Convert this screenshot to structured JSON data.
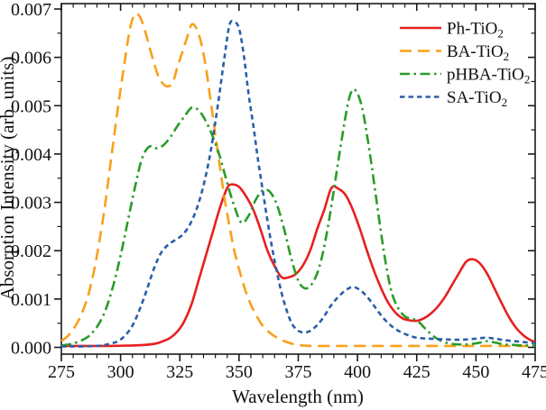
{
  "figure": {
    "background": "#ffffff"
  },
  "chart_data": {
    "type": "line",
    "title": "",
    "xlabel": "Wavelength (nm)",
    "ylabel": "Absorption Intensity (arb. units)",
    "xlim": [
      275,
      475
    ],
    "ylim": [
      0,
      0.007
    ],
    "x_major_ticks": [
      275,
      300,
      325,
      350,
      375,
      400,
      425,
      450,
      475
    ],
    "x_tick_labels": [
      "275",
      "300",
      "325",
      "350",
      "375",
      "400",
      "425",
      "450",
      "475"
    ],
    "x_minor_step": 5,
    "y_major_ticks": [
      0,
      0.001,
      0.002,
      0.003,
      0.004,
      0.005,
      0.006,
      0.007
    ],
    "y_tick_labels": [
      "0.000",
      "0.001",
      "0.002",
      "0.003",
      "0.004",
      "0.005",
      "0.006",
      "0.007"
    ],
    "y_minor_step": 0.0005,
    "grid": false,
    "axis_color": "#1a1a1a",
    "legend": {
      "position": "upper-right",
      "frame": false
    },
    "series": [
      {
        "id": "ph-tio2",
        "name": "Ph-TiO",
        "name_sub": "2",
        "color": "#e62020",
        "style": "solid",
        "x": [
          275,
          285,
          295,
          305,
          310,
          315,
          318,
          321,
          324,
          327,
          330,
          333,
          336,
          339,
          342,
          345,
          347,
          350,
          353,
          356,
          359,
          362,
          365,
          368,
          371,
          374,
          377,
          380,
          383,
          386,
          389,
          392,
          395,
          398,
          401,
          404,
          407,
          410,
          413,
          416,
          419,
          422,
          425,
          428,
          431,
          434,
          437,
          440,
          443,
          446,
          449,
          452,
          455,
          458,
          461,
          464,
          467,
          470,
          473,
          475
        ],
        "y": [
          3e-05,
          3e-05,
          3e-05,
          4e-05,
          5e-05,
          8e-05,
          0.00013,
          0.0002,
          0.00033,
          0.00055,
          0.0009,
          0.0014,
          0.0019,
          0.0024,
          0.0029,
          0.0033,
          0.00337,
          0.00332,
          0.00312,
          0.00285,
          0.00245,
          0.002,
          0.00168,
          0.00145,
          0.00145,
          0.00152,
          0.0017,
          0.002,
          0.00245,
          0.00285,
          0.0033,
          0.00328,
          0.00315,
          0.00285,
          0.00245,
          0.002,
          0.00158,
          0.00122,
          0.00092,
          0.00072,
          0.0006,
          0.00056,
          0.00055,
          0.0006,
          0.0007,
          0.00085,
          0.00105,
          0.0013,
          0.00155,
          0.00178,
          0.00182,
          0.00172,
          0.0015,
          0.0012,
          0.0009,
          0.00062,
          0.0004,
          0.00025,
          0.00015,
          0.00012
        ]
      },
      {
        "id": "ba-tio2",
        "name": "BA-TiO",
        "name_sub": "2",
        "color": "#f9a01b",
        "style": "long-dash",
        "x": [
          275,
          278,
          281,
          284,
          287,
          290,
          293,
          296,
          299,
          302,
          304,
          306,
          308,
          310,
          312,
          314,
          316,
          318,
          320,
          322,
          324,
          326,
          328,
          330,
          332,
          334,
          336,
          338,
          340,
          342,
          344,
          346,
          348,
          350,
          352,
          354,
          356,
          358,
          360,
          363,
          366,
          369,
          372,
          375,
          380,
          390,
          400,
          415,
          430,
          450,
          475
        ],
        "y": [
          0.00013,
          0.00025,
          0.00045,
          0.00075,
          0.0012,
          0.0019,
          0.0028,
          0.0039,
          0.005,
          0.006,
          0.0066,
          0.00689,
          0.00685,
          0.0066,
          0.00625,
          0.0059,
          0.0056,
          0.00545,
          0.0054,
          0.00548,
          0.0058,
          0.0061,
          0.0064,
          0.00668,
          0.0066,
          0.0063,
          0.0058,
          0.0051,
          0.0044,
          0.0037,
          0.00305,
          0.0025,
          0.002,
          0.00162,
          0.00128,
          0.001,
          0.00078,
          0.0006,
          0.00045,
          0.0003,
          0.0002,
          0.00013,
          8e-05,
          5e-05,
          3e-05,
          3e-05,
          3e-05,
          3e-05,
          3e-05,
          3e-05,
          3e-05
        ]
      },
      {
        "id": "phba-tio2",
        "name": "pHBA-TiO",
        "name_sub": "2",
        "color": "#2a9c28",
        "style": "dash-dot",
        "x": [
          275,
          280,
          285,
          288,
          291,
          294,
          297,
          300,
          303,
          306,
          309,
          312,
          315,
          318,
          321,
          324,
          327,
          330,
          333,
          336,
          339,
          342,
          345,
          348,
          351,
          354,
          357,
          360,
          363,
          366,
          369,
          372,
          375,
          378,
          381,
          384,
          387,
          390,
          393,
          396,
          398,
          400,
          402,
          404,
          406,
          408,
          410,
          412,
          414,
          416,
          418,
          420,
          422,
          424,
          426,
          428,
          430,
          433,
          436,
          440,
          444,
          448,
          452,
          455,
          458,
          462,
          466,
          470,
          475
        ],
        "y": [
          4e-05,
          8e-05,
          0.00018,
          0.0003,
          0.0005,
          0.00082,
          0.0013,
          0.0019,
          0.0026,
          0.0033,
          0.0039,
          0.00415,
          0.00412,
          0.00418,
          0.00435,
          0.00458,
          0.00478,
          0.00496,
          0.0049,
          0.00468,
          0.00435,
          0.00393,
          0.0034,
          0.00292,
          0.00258,
          0.00272,
          0.00305,
          0.00325,
          0.00322,
          0.00295,
          0.00245,
          0.00185,
          0.00138,
          0.00122,
          0.00133,
          0.00168,
          0.00235,
          0.00325,
          0.0042,
          0.00505,
          0.00533,
          0.00525,
          0.00495,
          0.0044,
          0.00375,
          0.00305,
          0.00235,
          0.00172,
          0.00122,
          0.00092,
          0.00075,
          0.00064,
          0.0006,
          0.00058,
          0.00052,
          0.00042,
          0.00032,
          0.0002,
          0.00012,
          7e-05,
          6e-05,
          7e-05,
          0.0001,
          0.00013,
          0.0001,
          6e-05,
          5e-05,
          4e-05,
          4e-05
        ]
      },
      {
        "id": "sa-tio2",
        "name": "SA-TiO",
        "name_sub": "2",
        "color": "#2a5fa8",
        "style": "short-dash",
        "x": [
          275,
          285,
          292,
          296,
          299,
          302,
          305,
          308,
          311,
          314,
          317,
          320,
          323,
          326,
          329,
          332,
          335,
          338,
          341,
          344,
          346,
          348,
          350,
          352,
          354,
          356,
          358,
          360,
          362,
          364,
          366,
          368,
          370,
          372,
          374,
          376,
          378,
          380,
          383,
          386,
          389,
          392,
          395,
          398,
          401,
          404,
          407,
          410,
          413,
          416,
          419,
          422,
          425,
          430,
          435,
          440,
          445,
          450,
          454,
          458,
          462,
          466,
          470,
          475
        ],
        "y": [
          2e-05,
          2e-05,
          4e-05,
          8e-05,
          0.00013,
          0.00025,
          0.00045,
          0.00078,
          0.00118,
          0.00162,
          0.00195,
          0.00212,
          0.00222,
          0.00232,
          0.00252,
          0.00285,
          0.00335,
          0.00405,
          0.005,
          0.00605,
          0.00668,
          0.00673,
          0.0066,
          0.00605,
          0.00525,
          0.0046,
          0.00388,
          0.00325,
          0.00262,
          0.00205,
          0.00155,
          0.00112,
          0.00078,
          0.00052,
          0.00038,
          0.00032,
          0.00031,
          0.00034,
          0.00046,
          0.00065,
          0.00088,
          0.00105,
          0.00118,
          0.00125,
          0.00119,
          0.00105,
          0.00086,
          0.00066,
          0.0005,
          0.00038,
          0.0003,
          0.00024,
          0.0002,
          0.00018,
          0.00017,
          0.00016,
          0.00016,
          0.00018,
          0.0002,
          0.00018,
          0.00015,
          0.00013,
          0.00011,
          9e-05
        ]
      }
    ]
  }
}
